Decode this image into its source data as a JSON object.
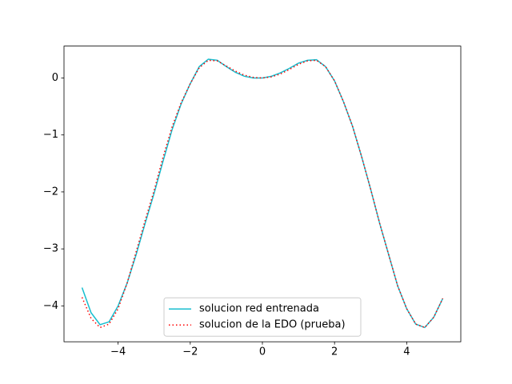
{
  "chart_data": {
    "type": "line",
    "x": [
      -5,
      -4.75,
      -4.5,
      -4.25,
      -4,
      -3.75,
      -3.5,
      -3.25,
      -3,
      -2.75,
      -2.5,
      -2.25,
      -2,
      -1.75,
      -1.5,
      -1.25,
      -1,
      -0.75,
      -0.5,
      -0.25,
      0,
      0.25,
      0.5,
      0.75,
      1,
      1.25,
      1.5,
      1.75,
      2,
      2.25,
      2.5,
      2.75,
      3,
      3.25,
      3.5,
      3.75,
      4,
      4.25,
      4.5,
      4.75,
      5
    ],
    "series": [
      {
        "name": "solucion red entrenada",
        "color": "#17becf",
        "style": "solid",
        "values": [
          -3.68,
          -4.12,
          -4.33,
          -4.28,
          -4.0,
          -3.6,
          -3.1,
          -2.55,
          -2.02,
          -1.45,
          -0.9,
          -0.45,
          -0.1,
          0.2,
          0.33,
          0.31,
          0.2,
          0.1,
          0.03,
          0.0,
          0.0,
          0.03,
          0.09,
          0.17,
          0.26,
          0.31,
          0.32,
          0.2,
          -0.05,
          -0.42,
          -0.85,
          -1.38,
          -1.95,
          -2.55,
          -3.1,
          -3.65,
          -4.05,
          -4.32,
          -4.38,
          -4.2,
          -3.87
        ]
      },
      {
        "name": "solucion de la EDO (prueba)",
        "color": "#ff0000",
        "style": "dotted",
        "values": [
          -3.85,
          -4.22,
          -4.38,
          -4.32,
          -4.05,
          -3.6,
          -3.05,
          -2.5,
          -1.97,
          -1.38,
          -0.85,
          -0.43,
          -0.1,
          0.18,
          0.31,
          0.3,
          0.21,
          0.12,
          0.05,
          0.01,
          0.0,
          0.02,
          0.07,
          0.15,
          0.24,
          0.3,
          0.31,
          0.2,
          -0.05,
          -0.42,
          -0.85,
          -1.38,
          -1.95,
          -2.55,
          -3.1,
          -3.65,
          -4.05,
          -4.32,
          -4.38,
          -4.2,
          -3.87
        ]
      }
    ],
    "xlim": [
      -5.5,
      5.5
    ],
    "ylim": [
      -4.63,
      0.56
    ],
    "xticks": [
      {
        "value": -4,
        "label": "−4"
      },
      {
        "value": -2,
        "label": "−2"
      },
      0,
      2,
      4
    ],
    "yticks": [
      {
        "value": -4,
        "label": "−4"
      },
      {
        "value": -3,
        "label": "−3"
      },
      {
        "value": -2,
        "label": "−2"
      },
      {
        "value": -1,
        "label": "−1"
      },
      0
    ],
    "grid": false,
    "legend": "lower center"
  }
}
